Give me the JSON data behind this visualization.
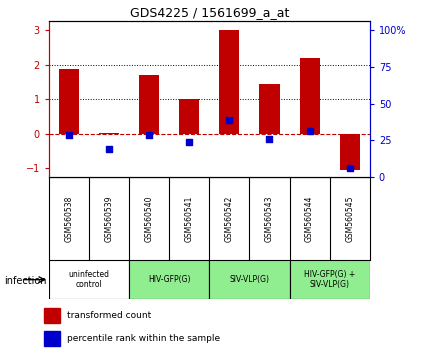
{
  "title": "GDS4225 / 1561699_a_at",
  "samples": [
    "GSM560538",
    "GSM560539",
    "GSM560540",
    "GSM560541",
    "GSM560542",
    "GSM560543",
    "GSM560544",
    "GSM560545"
  ],
  "transformed_counts": [
    1.87,
    0.02,
    1.7,
    1.0,
    3.0,
    1.45,
    2.2,
    -1.05
  ],
  "percentile_ranks_pct": [
    24,
    14,
    24,
    19,
    35,
    21,
    27,
    0
  ],
  "bar_color": "#C00000",
  "dot_color": "#0000CC",
  "dashed_line_color": "#C00000",
  "ylim": [
    -1.25,
    3.25
  ],
  "yticks": [
    -1,
    0,
    1,
    2,
    3
  ],
  "y2lim": [
    0,
    106.25
  ],
  "y2ticks": [
    0,
    25,
    50,
    75,
    100
  ],
  "dotted_lines": [
    1.0,
    2.0
  ],
  "group_spans": [
    {
      "label": "uninfected\ncontrol",
      "start": 0,
      "end": 2,
      "color": "#ffffff"
    },
    {
      "label": "HIV-GFP(G)",
      "start": 2,
      "end": 4,
      "color": "#90EE90"
    },
    {
      "label": "SIV-VLP(G)",
      "start": 4,
      "end": 6,
      "color": "#90EE90"
    },
    {
      "label": "HIV-GFP(G) +\nSIV-VLP(G)",
      "start": 6,
      "end": 8,
      "color": "#90EE90"
    }
  ],
  "infection_label": "infection",
  "legend_red_label": "transformed count",
  "legend_blue_label": "percentile rank within the sample",
  "bar_width": 0.5,
  "sample_box_color": "#c0c0c0",
  "sample_box_border": "#000000"
}
